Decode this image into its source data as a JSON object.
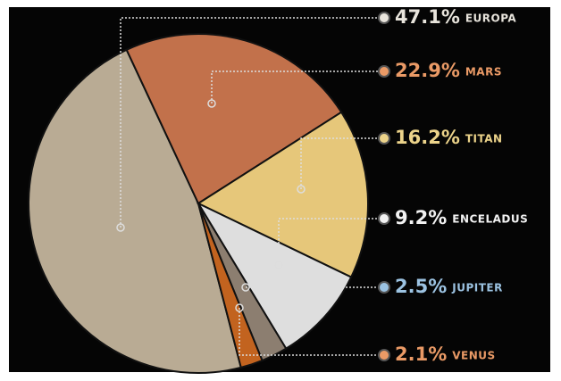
{
  "chart_data": {
    "type": "pie",
    "categories": [
      "EUROPA",
      "MARS",
      "TITAN",
      "ENCELADUS",
      "JUPITER",
      "VENUS"
    ],
    "values": [
      47.1,
      22.9,
      16.2,
      9.2,
      2.5,
      2.1
    ],
    "value_labels": [
      "47.1%",
      "22.9%",
      "16.2%",
      "9.2%",
      "2.5%",
      "2.1%"
    ],
    "colors": [
      "#b9ab94",
      "#c2714b",
      "#e6c77a",
      "#dedede",
      "#8c7e70",
      "#c2631f"
    ],
    "label_colors": [
      "#e8e4dc",
      "#ea9a66",
      "#ecd38a",
      "#f2f2f2",
      "#9cc3e2",
      "#ea9a66"
    ]
  }
}
